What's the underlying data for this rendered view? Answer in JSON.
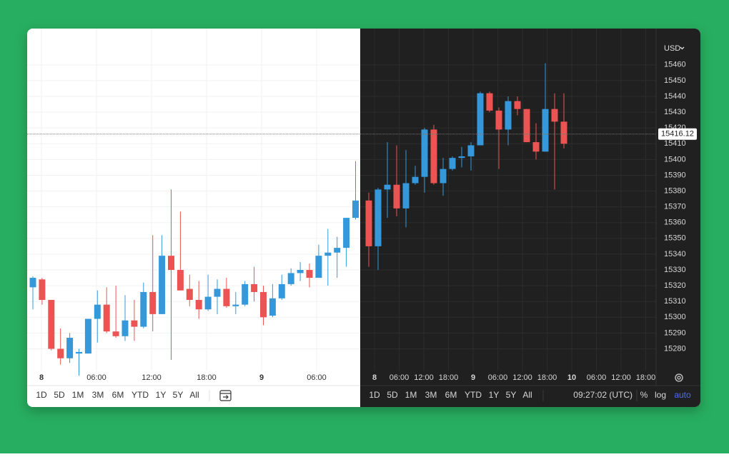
{
  "chart_data": [
    {
      "type": "candlestick",
      "theme": "light",
      "background": "#ffffff",
      "grid_color": "#f0f2f3",
      "text_color": "#333333",
      "up_color": "#3598db",
      "down_color": "#ec5454",
      "grid": true,
      "y_labels_visible": false,
      "xtick_labels": [
        "8",
        "06:00",
        "12:00",
        "18:00",
        "9",
        "06:00"
      ],
      "ylim": [
        15268,
        15483
      ],
      "yticks": [
        15280,
        15290,
        15300,
        15310,
        15320,
        15330,
        15340,
        15350,
        15360,
        15370,
        15380,
        15390,
        15400,
        15410,
        15420,
        15430,
        15440,
        15450,
        15460
      ],
      "open": [
        15319,
        15324,
        15311,
        15280,
        15274,
        15277,
        15277,
        15299,
        15308,
        15291,
        15288,
        15298,
        15294,
        15316,
        15302,
        15339,
        15330,
        15318,
        15311,
        15305,
        15313,
        15318,
        15307,
        15308,
        15321,
        15316,
        15301,
        15312,
        15321,
        15328,
        15330,
        15325,
        15339,
        15341,
        15344,
        15363
      ],
      "high": [
        15326,
        15325,
        15311,
        15293,
        15290,
        15280,
        15299,
        15317,
        15319,
        15320,
        15314,
        15311,
        15322,
        15352,
        15352,
        15381,
        15367,
        15327,
        15323,
        15327,
        15324,
        15325,
        15316,
        15323,
        15332,
        15320,
        15321,
        15327,
        15331,
        15335,
        15334,
        15346,
        15356,
        15351,
        15363,
        15399
      ],
      "low": [
        15305,
        15308,
        15279,
        15270,
        15271,
        15263,
        15277,
        15284,
        15290,
        15287,
        15285,
        15285,
        15293,
        15291,
        15302,
        15273,
        15317,
        15307,
        15299,
        15304,
        15302,
        15306,
        15302,
        15307,
        15310,
        15295,
        15300,
        15311,
        15320,
        15323,
        15319,
        15325,
        15320,
        15325,
        15332,
        15362
      ],
      "close": [
        15325,
        15311,
        15280,
        15274,
        15287,
        15278,
        15299,
        15308,
        15291,
        15288,
        15298,
        15294,
        15316,
        15302,
        15339,
        15330,
        15317,
        15311,
        15305,
        15313,
        15318,
        15307,
        15308,
        15321,
        15316,
        15300,
        15312,
        15321,
        15328,
        15330,
        15325,
        15339,
        15341,
        15344,
        15363,
        15374
      ]
    },
    {
      "type": "candlestick",
      "theme": "dark",
      "background": "#202020",
      "grid_color": "#2c2c2c",
      "text_color": "#d6d6d6",
      "up_color": "#3598db",
      "down_color": "#ec5454",
      "grid": true,
      "y_labels_visible": true,
      "xtick_labels": [
        "8",
        "06:00",
        "12:00",
        "18:00",
        "9",
        "06:00",
        "12:00",
        "18:00",
        "10",
        "06:00",
        "12:00",
        "18:00"
      ],
      "ylim": [
        15268,
        15483
      ],
      "yticks": [
        15280,
        15290,
        15300,
        15310,
        15320,
        15330,
        15340,
        15350,
        15360,
        15370,
        15380,
        15390,
        15400,
        15410,
        15420,
        15430,
        15440,
        15450,
        15460
      ],
      "last_price": 15416.12,
      "currency": "USD",
      "open": [
        15374,
        15345,
        15381,
        15384,
        15369,
        15385,
        15389,
        15419,
        15385,
        15394,
        15401,
        15402,
        15409,
        15442,
        15431,
        15419,
        15437,
        15432,
        15411,
        15405,
        15432,
        15424
      ],
      "high": [
        15379,
        15382,
        15411,
        15409,
        15406,
        15396,
        15420,
        15422,
        15401,
        15402,
        15408,
        15411,
        15443,
        15443,
        15433,
        15440,
        15440,
        15432,
        15423,
        15461,
        15442,
        15442
      ],
      "low": [
        15332,
        15330,
        15363,
        15364,
        15357,
        15384,
        15379,
        15384,
        15377,
        15393,
        15395,
        15393,
        15409,
        15430,
        15394,
        15409,
        15428,
        15411,
        15400,
        15405,
        15381,
        15407
      ],
      "close": [
        15345,
        15381,
        15384,
        15369,
        15385,
        15389,
        15419,
        15385,
        15394,
        15401,
        15402,
        15409,
        15442,
        15431,
        15419,
        15437,
        15432,
        15411,
        15405,
        15432,
        15424,
        15410
      ]
    }
  ],
  "toolbar": {
    "ranges": [
      "1D",
      "5D",
      "1M",
      "3M",
      "6M",
      "YTD",
      "1Y",
      "5Y",
      "All"
    ],
    "time": "09:27:02 (UTC)",
    "scale_buttons": [
      "%",
      "log",
      "auto"
    ]
  }
}
